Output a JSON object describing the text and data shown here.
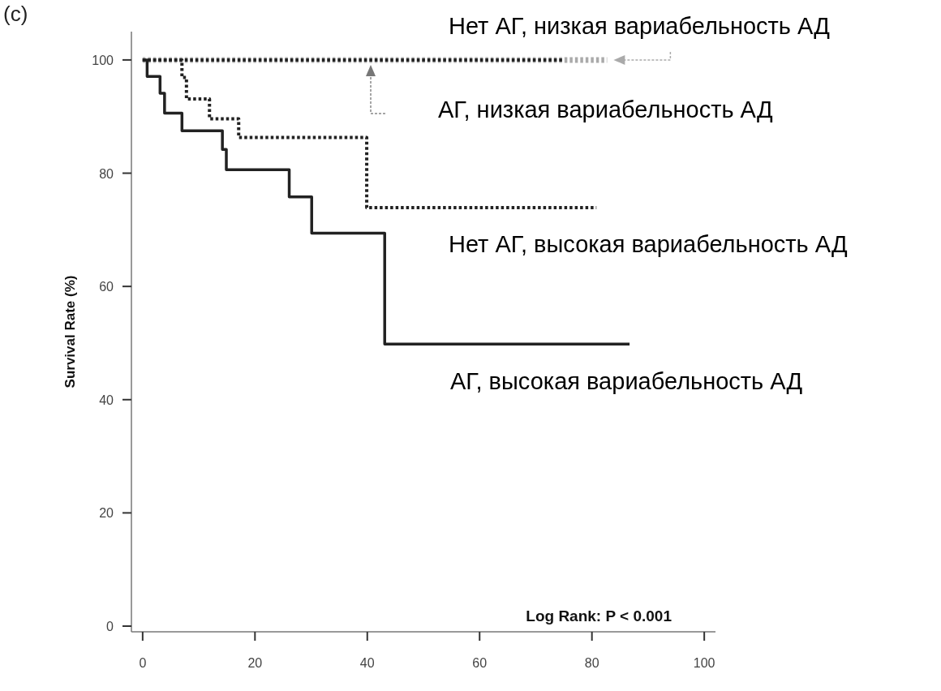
{
  "chart_data": {
    "type": "step",
    "ylabel": "Survival Rate (%)",
    "legend": false,
    "line_style": "dotted",
    "xlim": [
      -2,
      102
    ],
    "xticks": [
      0,
      20,
      40,
      60,
      80,
      100
    ],
    "ylim": [
      -1,
      105
    ],
    "yticks": [
      0,
      20,
      40,
      60,
      80,
      100
    ],
    "annotations": [
      "(c)",
      "Log Rank: P < 0.001"
    ],
    "series": [
      {
        "name": "АГ, высокая вариабельность АД",
        "color": "#222222",
        "line_style": "solid",
        "x": [
          0,
          0.8,
          3.1,
          3.9,
          7.0,
          14.2,
          14.9,
          26.1,
          30.1,
          43.1,
          86.7
        ],
        "values": [
          100,
          97.1,
          94.1,
          90.6,
          87.5,
          84.2,
          80.6,
          75.8,
          69.4,
          49.8,
          49.8
        ]
      },
      {
        "name": "Нет АГ, высокая вариабельность АД",
        "color": "#222222",
        "x": [
          0,
          7.0,
          7.8,
          11.9,
          17.1,
          39.9,
          80.8
        ],
        "values": [
          100,
          96.9,
          93.1,
          89.6,
          86.3,
          73.9,
          73.9
        ]
      },
      {
        "name": "Нет АГ, низкая вариабельность АД",
        "color": "#aaaaaa",
        "x": [
          0,
          82.7
        ],
        "values": [
          100,
          100
        ]
      },
      {
        "name": "АГ, низкая вариабельность АД",
        "color": "#222222",
        "x": [
          0,
          74.7
        ],
        "values": [
          100,
          100
        ]
      }
    ]
  }
}
